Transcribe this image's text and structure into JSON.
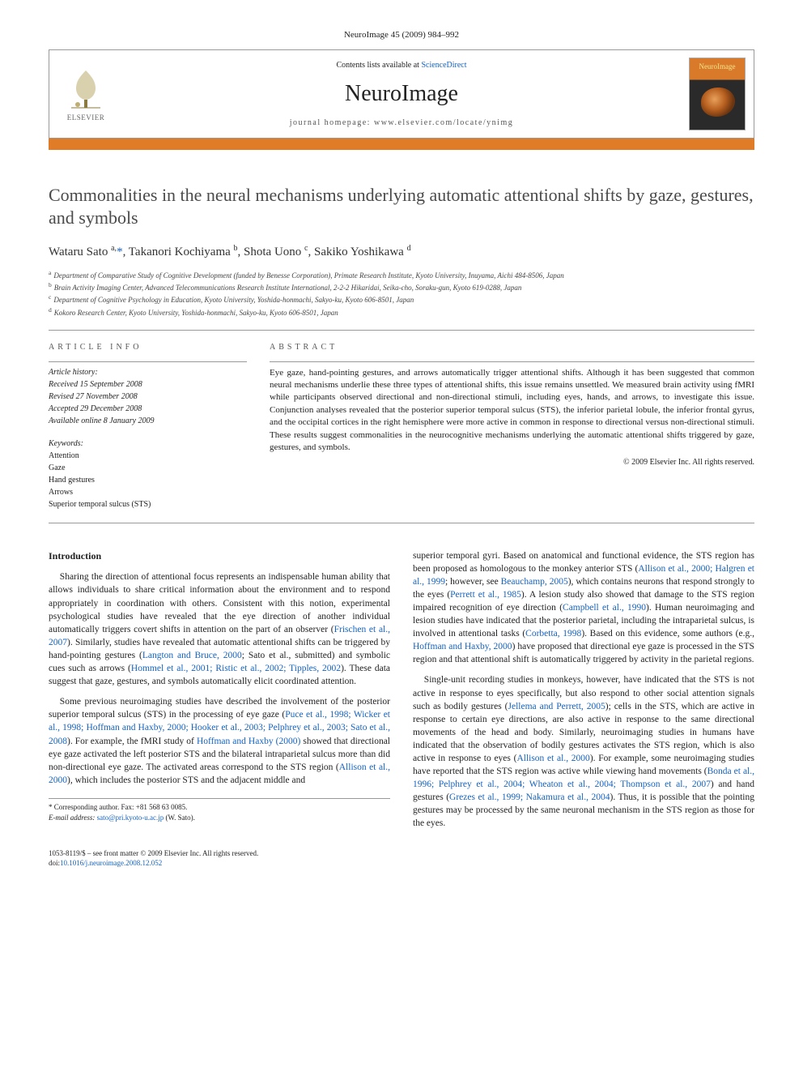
{
  "journal_ref": "NeuroImage 45 (2009) 984–992",
  "header": {
    "contents_prefix": "Contents lists available at ",
    "contents_link": "ScienceDirect",
    "journal_name": "NeuroImage",
    "homepage_prefix": "journal homepage: ",
    "homepage_url": "www.elsevier.com/locate/ynimg",
    "publisher": "ELSEVIER",
    "cover_label": "NeuroImage"
  },
  "title": "Commonalities in the neural mechanisms underlying automatic attentional shifts by gaze, gestures, and symbols",
  "authors_html": "Wataru Sato <sup>a,</sup><a href='#'>*</a>, Takanori Kochiyama <sup>b</sup>, Shota Uono <sup>c</sup>, Sakiko Yoshikawa <sup>d</sup>",
  "affiliations": [
    {
      "key": "a",
      "text": "Department of Comparative Study of Cognitive Development (funded by Benesse Corporation), Primate Research Institute, Kyoto University, Inuyama, Aichi 484-8506, Japan"
    },
    {
      "key": "b",
      "text": "Brain Activity Imaging Center, Advanced Telecommunications Research Institute International, 2-2-2 Hikaridai, Seika-cho, Soraku-gun, Kyoto 619-0288, Japan"
    },
    {
      "key": "c",
      "text": "Department of Cognitive Psychology in Education, Kyoto University, Yoshida-honmachi, Sakyo-ku, Kyoto 606-8501, Japan"
    },
    {
      "key": "d",
      "text": "Kokoro Research Center, Kyoto University, Yoshida-honmachi, Sakyo-ku, Kyoto 606-8501, Japan"
    }
  ],
  "article_info": {
    "heading": "ARTICLE INFO",
    "history_label": "Article history:",
    "received": "Received 15 September 2008",
    "revised": "Revised 27 November 2008",
    "accepted": "Accepted 29 December 2008",
    "online": "Available online 8 January 2009",
    "keywords_label": "Keywords:",
    "keywords": [
      "Attention",
      "Gaze",
      "Hand gestures",
      "Arrows",
      "Superior temporal sulcus (STS)"
    ]
  },
  "abstract": {
    "heading": "ABSTRACT",
    "text": "Eye gaze, hand-pointing gestures, and arrows automatically trigger attentional shifts. Although it has been suggested that common neural mechanisms underlie these three types of attentional shifts, this issue remains unsettled. We measured brain activity using fMRI while participants observed directional and non-directional stimuli, including eyes, hands, and arrows, to investigate this issue. Conjunction analyses revealed that the posterior superior temporal sulcus (STS), the inferior parietal lobule, the inferior frontal gyrus, and the occipital cortices in the right hemisphere were more active in common in response to directional versus non-directional stimuli. These results suggest commonalities in the neurocognitive mechanisms underlying the automatic attentional shifts triggered by gaze, gestures, and symbols.",
    "copyright": "© 2009 Elsevier Inc. All rights reserved."
  },
  "body": {
    "intro_heading": "Introduction",
    "p1": "Sharing the direction of attentional focus represents an indispensable human ability that allows individuals to share critical information about the environment and to respond appropriately in coordination with others. Consistent with this notion, experimental psychological studies have revealed that the eye direction of another individual automatically triggers covert shifts in attention on the part of an observer (",
    "p1_link1": "Frischen et al., 2007",
    "p1_b": "). Similarly, studies have revealed that automatic attentional shifts can be triggered by hand-pointing gestures (",
    "p1_link2": "Langton and Bruce, 2000",
    "p1_c": "; Sato et al., submitted) and symbolic cues such as arrows (",
    "p1_link3": "Hommel et al., 2001; Ristic et al., 2002; Tipples, 2002",
    "p1_d": "). These data suggest that gaze, gestures, and symbols automatically elicit coordinated attention.",
    "p2": "Some previous neuroimaging studies have described the involvement of the posterior superior temporal sulcus (STS) in the processing of eye gaze (",
    "p2_link1": "Puce et al., 1998; Wicker et al., 1998; Hoffman and Haxby, 2000; Hooker et al., 2003; Pelphrey et al., 2003; Sato et al., 2008",
    "p2_b": "). For example, the fMRI study of ",
    "p2_link2": "Hoffman and Haxby (2000)",
    "p2_c": " showed that directional eye gaze activated the left posterior STS and the bilateral intraparietal sulcus more than did non-directional eye gaze. The activated areas correspond to the STS region (",
    "p2_link3": "Allison et al., 2000",
    "p2_d": "), which includes the posterior STS and the adjacent middle and ",
    "p3": "superior temporal gyri. Based on anatomical and functional evidence, the STS region has been proposed as homologous to the monkey anterior STS (",
    "p3_link1": "Allison et al., 2000; Halgren et al., 1999",
    "p3_b": "; however, see ",
    "p3_link2": "Beauchamp, 2005",
    "p3_c": "), which contains neurons that respond strongly to the eyes (",
    "p3_link3": "Perrett et al., 1985",
    "p3_d": "). A lesion study also showed that damage to the STS region impaired recognition of eye direction (",
    "p3_link4": "Campbell et al., 1990",
    "p3_e": "). Human neuroimaging and lesion studies have indicated that the posterior parietal, including the intraparietal sulcus, is involved in attentional tasks (",
    "p3_link5": "Corbetta, 1998",
    "p3_f": "). Based on this evidence, some authors (e.g., ",
    "p3_link6": "Hoffman and Haxby, 2000",
    "p3_g": ") have proposed that directional eye gaze is processed in the STS region and that attentional shift is automatically triggered by activity in the parietal regions.",
    "p4": "Single-unit recording studies in monkeys, however, have indicated that the STS is not active in response to eyes specifically, but also respond to other social attention signals such as bodily gestures (",
    "p4_link1": "Jellema and Perrett, 2005",
    "p4_b": "); cells in the STS, which are active in response to certain eye directions, are also active in response to the same directional movements of the head and body. Similarly, neuroimaging studies in humans have indicated that the observation of bodily gestures activates the STS region, which is also active in response to eyes (",
    "p4_link2": "Allison et al., 2000",
    "p4_c": "). For example, some neuroimaging studies have reported that the STS region was active while viewing hand movements (",
    "p4_link3": "Bonda et al., 1996; Pelphrey et al., 2004; Wheaton et al., 2004; Thompson et al., 2007",
    "p4_d": ") and hand gestures (",
    "p4_link4": "Grezes et al., 1999; Nakamura et al., 2004",
    "p4_e": "). Thus, it is possible that the pointing gestures may be processed by the same neuronal mechanism in the STS region as those for the eyes."
  },
  "footnote": {
    "corr": "* Corresponding author. Fax: +81 568 63 0085.",
    "email_label": "E-mail address: ",
    "email": "sato@pri.kyoto-u.ac.jp",
    "email_suffix": " (W. Sato)."
  },
  "footer": {
    "line1": "1053-8119/$ – see front matter © 2009 Elsevier Inc. All rights reserved.",
    "doi_label": "doi:",
    "doi": "10.1016/j.neuroimage.2008.12.052"
  },
  "colors": {
    "accent_orange": "#e07b28",
    "link_blue": "#1463c2",
    "rule_gray": "#999999"
  }
}
